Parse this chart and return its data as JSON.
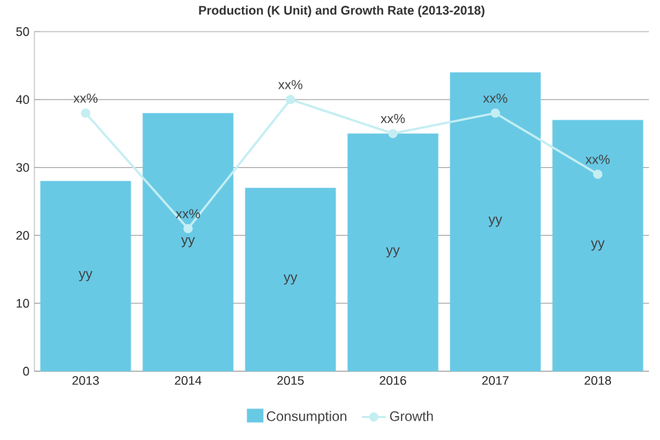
{
  "chart_data": {
    "type": "bar",
    "title": "Production (K Unit) and Growth Rate (2013-2018)",
    "categories": [
      "2013",
      "2014",
      "2015",
      "2016",
      "2017",
      "2018"
    ],
    "series": [
      {
        "name": "Consumption",
        "color": "#68c9e5",
        "values": [
          28,
          38,
          27,
          35,
          44,
          37
        ],
        "value_labels": [
          "yy",
          "yy",
          "yy",
          "yy",
          "yy",
          "yy"
        ]
      },
      {
        "name": "Growth",
        "type": "line",
        "color": "#c4eef2",
        "values": [
          38,
          21,
          40,
          35,
          38,
          29
        ],
        "value_labels": [
          "xx%",
          "xx%",
          "xx%",
          "xx%",
          "xx%",
          "xx%"
        ],
        "marker": "circle",
        "line_style": "solid"
      }
    ],
    "ylim": [
      0,
      50
    ],
    "yticks": [
      0,
      10,
      20,
      30,
      40,
      50
    ],
    "grid": "y",
    "legend": "bottom"
  }
}
